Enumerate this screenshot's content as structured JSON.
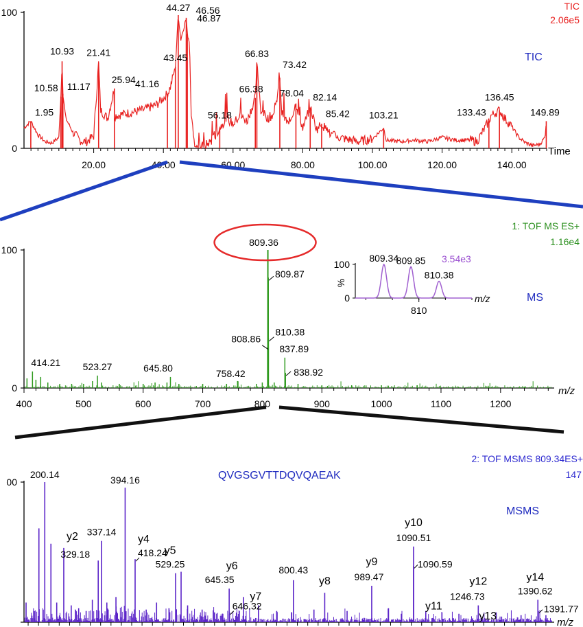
{
  "chart_data": [
    {
      "type": "line",
      "panel": "TIC",
      "title": "TIC",
      "header": [
        "TIC",
        "2.06e5"
      ],
      "xlabel": "Time",
      "ylabel": "",
      "xlim": [
        0,
        150
      ],
      "ylim": [
        0,
        100
      ],
      "y_tick_labels": [
        "0",
        "100"
      ],
      "x_ticks": [
        20,
        40,
        60,
        80,
        100,
        120,
        140
      ],
      "x_tick_labels": [
        "20.00",
        "40.00",
        "60.00",
        "80.00",
        "100.00",
        "120.00",
        "140.00"
      ],
      "series_color": "#e8201f",
      "x": [
        0,
        1.95,
        4,
        6,
        8,
        10,
        10.58,
        10.93,
        11.17,
        12,
        14,
        16,
        17,
        18,
        20,
        21.41,
        22,
        24,
        25.94,
        26,
        28,
        30,
        32,
        34,
        36,
        38,
        40,
        41.16,
        42,
        43.45,
        44.27,
        45,
        46.56,
        46.87,
        47.5,
        48,
        49,
        50,
        52,
        54,
        56.18,
        58,
        60,
        62,
        64,
        66.38,
        66.83,
        68,
        70,
        72,
        73.42,
        74,
        76,
        78.04,
        80,
        82.14,
        84,
        85.42,
        88,
        92,
        96,
        100,
        103.21,
        104,
        108,
        112,
        116,
        120,
        124,
        128,
        130,
        133.43,
        134,
        136.45,
        138,
        140,
        142,
        144,
        146,
        148,
        149.5,
        149.89
      ],
      "values": [
        15,
        20,
        10,
        5,
        4,
        8,
        38,
        64,
        40,
        22,
        12,
        6,
        5,
        5,
        9,
        63,
        28,
        22,
        44,
        24,
        25,
        26,
        27,
        28,
        30,
        32,
        37,
        40,
        45,
        60,
        98,
        80,
        96,
        84,
        78,
        25,
        2,
        1,
        2,
        6,
        15,
        22,
        18,
        24,
        20,
        37,
        62,
        28,
        22,
        26,
        52,
        26,
        17,
        33,
        15,
        30,
        14,
        18,
        10,
        7,
        5,
        7,
        15,
        6,
        5,
        6,
        5,
        8,
        6,
        6,
        5,
        20,
        24,
        28,
        22,
        16,
        8,
        4,
        2,
        3,
        8,
        20
      ],
      "annotations": [
        {
          "label": "1.95",
          "x": 1.95,
          "y": 20
        },
        {
          "label": "10.58",
          "x": 10.58,
          "y": 38
        },
        {
          "label": "10.93",
          "x": 10.93,
          "y": 64
        },
        {
          "label": "11.17",
          "x": 11.17,
          "y": 40
        },
        {
          "label": "21.41",
          "x": 21.41,
          "y": 63
        },
        {
          "label": "25.94",
          "x": 25.94,
          "y": 44
        },
        {
          "label": "41.16",
          "x": 41.16,
          "y": 40
        },
        {
          "label": "43.45",
          "x": 43.45,
          "y": 60
        },
        {
          "label": "44.27",
          "x": 44.27,
          "y": 98
        },
        {
          "label": "46.56",
          "x": 46.56,
          "y": 96
        },
        {
          "label": "46.87",
          "x": 46.87,
          "y": 84
        },
        {
          "label": "56.18",
          "x": 56.18,
          "y": 15
        },
        {
          "label": "66.38",
          "x": 66.38,
          "y": 37
        },
        {
          "label": "66.83",
          "x": 66.83,
          "y": 62
        },
        {
          "label": "73.42",
          "x": 73.42,
          "y": 52
        },
        {
          "label": "78.04",
          "x": 78.04,
          "y": 33
        },
        {
          "label": "82.14",
          "x": 82.14,
          "y": 30
        },
        {
          "label": "85.42",
          "x": 85.42,
          "y": 18
        },
        {
          "label": "103.21",
          "x": 103.21,
          "y": 15
        },
        {
          "label": "133.43",
          "x": 133.43,
          "y": 20
        },
        {
          "label": "136.45",
          "x": 136.45,
          "y": 28
        },
        {
          "label": "149.89",
          "x": 149.89,
          "y": 20
        }
      ]
    },
    {
      "type": "bar",
      "panel": "MS",
      "title": "MS",
      "header": [
        "1: TOF MS ES+",
        "1.16e4"
      ],
      "xlabel": "m/z",
      "ylabel": "",
      "xlim": [
        400,
        1290
      ],
      "ylim": [
        0,
        100
      ],
      "y_tick_labels": [
        "0",
        "100"
      ],
      "x_ticks": [
        400,
        500,
        600,
        700,
        800,
        900,
        1000,
        1100,
        1200
      ],
      "x_tick_labels": [
        "400",
        "500",
        "600",
        "700",
        "800",
        "900",
        "1000",
        "1100",
        "1200"
      ],
      "series_color": "#2f9a1e",
      "x": [
        405,
        414.21,
        420,
        428,
        440,
        460,
        480,
        500,
        515,
        523.27,
        530,
        560,
        600,
        620,
        640,
        645.8,
        660,
        700,
        740,
        758.42,
        790,
        800,
        808.86,
        809.36,
        809.87,
        810.38,
        820,
        837.89,
        838.92,
        860,
        900,
        950,
        1000,
        1060,
        1120,
        1180,
        1240
      ],
      "values": [
        7,
        12,
        6,
        8,
        4,
        3,
        3,
        3,
        5,
        9,
        4,
        3,
        3,
        4,
        4,
        8,
        3,
        3,
        3,
        5,
        3,
        4,
        30,
        100,
        80,
        36,
        4,
        22,
        11,
        3,
        2,
        2,
        2,
        2,
        1,
        1,
        1
      ],
      "annotations": [
        {
          "label": "414.21",
          "x": 414.21,
          "y": 12
        },
        {
          "label": "523.27",
          "x": 523.27,
          "y": 9
        },
        {
          "label": "645.80",
          "x": 645.8,
          "y": 8
        },
        {
          "label": "758.42",
          "x": 758.42,
          "y": 5
        },
        {
          "label": "808.86",
          "x": 808.86,
          "y": 30
        },
        {
          "label": "809.36",
          "x": 809.36,
          "y": 100,
          "circled": true
        },
        {
          "label": "809.87",
          "x": 809.87,
          "y": 80
        },
        {
          "label": "810.38",
          "x": 810.38,
          "y": 36
        },
        {
          "label": "837.89",
          "x": 837.89,
          "y": 22
        },
        {
          "label": "838.92",
          "x": 838.92,
          "y": 11
        }
      ],
      "inset": {
        "type": "line",
        "intensity": "3.54e3",
        "ylabel": "%",
        "xlabel": "m/z",
        "xlim": [
          808.8,
          811.0
        ],
        "ylim": [
          0,
          100
        ],
        "y_tick_labels": [
          "0",
          "100"
        ],
        "x_ticks": [
          810
        ],
        "x_tick_labels": [
          "810"
        ],
        "series_color": "#a060d0",
        "peaks": [
          {
            "label": "809.34",
            "x": 809.34,
            "y": 100
          },
          {
            "label": "809.85",
            "x": 809.85,
            "y": 93
          },
          {
            "label": "810.38",
            "x": 810.38,
            "y": 50
          }
        ]
      }
    },
    {
      "type": "bar",
      "panel": "MSMS",
      "title": "MSMS",
      "header": [
        "2: TOF MSMS 809.34ES+",
        "147"
      ],
      "peptide": "QVGSGVTTDQVQAEAK",
      "xlabel": "m/z",
      "ylabel": "",
      "xlim": [
        150,
        1430
      ],
      "ylim": [
        0,
        100
      ],
      "y_tick_labels": [
        "00"
      ],
      "series_color": "#5a23c8",
      "x": [
        155,
        175,
        186,
        200.14,
        215,
        229,
        246,
        264,
        282,
        300,
        315,
        329.18,
        337.14,
        350,
        372,
        394.16,
        418.24,
        445,
        470,
        500,
        516,
        529.25,
        545,
        580,
        610,
        630,
        645.35,
        646.32,
        680,
        716,
        760,
        800.43,
        850,
        876,
        930,
        989.47,
        1030,
        1061,
        1090.51,
        1090.59,
        1120,
        1159,
        1200,
        1246.73,
        1290,
        1303,
        1350,
        1390.62,
        1391.77,
        1410
      ],
      "values": [
        14,
        8,
        67,
        100,
        56,
        14,
        53,
        12,
        10,
        8,
        16,
        44,
        58,
        14,
        18,
        96,
        45,
        9,
        14,
        10,
        35,
        36,
        12,
        9,
        7,
        6,
        24,
        7,
        18,
        12,
        8,
        30,
        9,
        21,
        8,
        26,
        10,
        6,
        54,
        40,
        8,
        7,
        6,
        12,
        7,
        4,
        5,
        16,
        8,
        5
      ],
      "annotations": [
        {
          "label": "200.14",
          "x": 200.14,
          "y": 100
        },
        {
          "label": "y2",
          "x": 246,
          "y": 53
        },
        {
          "label": "329.18",
          "x": 329.18,
          "y": 44
        },
        {
          "label": "337.14",
          "x": 337.14,
          "y": 58
        },
        {
          "label": "394.16",
          "x": 394.16,
          "y": 96
        },
        {
          "label": "y4",
          "x": 418.24,
          "y": 45
        },
        {
          "label": "418.24",
          "x": 418.24,
          "y": 45
        },
        {
          "label": "y5",
          "x": 529.25,
          "y": 36
        },
        {
          "label": "529.25",
          "x": 529.25,
          "y": 36
        },
        {
          "label": "y6",
          "x": 645.35,
          "y": 24
        },
        {
          "label": "645.35",
          "x": 645.35,
          "y": 24
        },
        {
          "label": "646.32",
          "x": 646.32,
          "y": 7
        },
        {
          "label": "y7",
          "x": 716,
          "y": 12
        },
        {
          "label": "800.43",
          "x": 800.43,
          "y": 30
        },
        {
          "label": "y8",
          "x": 876,
          "y": 21
        },
        {
          "label": "y9",
          "x": 989.47,
          "y": 26
        },
        {
          "label": "989.47",
          "x": 989.47,
          "y": 26
        },
        {
          "label": "y10",
          "x": 1090.51,
          "y": 54
        },
        {
          "label": "1090.51",
          "x": 1090.51,
          "y": 54
        },
        {
          "label": "1090.59",
          "x": 1090.59,
          "y": 40
        },
        {
          "label": "y11",
          "x": 1159,
          "y": 7
        },
        {
          "label": "y12",
          "x": 1246.73,
          "y": 12
        },
        {
          "label": "1246.73",
          "x": 1246.73,
          "y": 12
        },
        {
          "label": "y13",
          "x": 1303,
          "y": 4
        },
        {
          "label": "y14",
          "x": 1390.62,
          "y": 16
        },
        {
          "label": "1390.62",
          "x": 1390.62,
          "y": 16
        },
        {
          "label": "1391.77",
          "x": 1391.77,
          "y": 8
        }
      ]
    }
  ]
}
